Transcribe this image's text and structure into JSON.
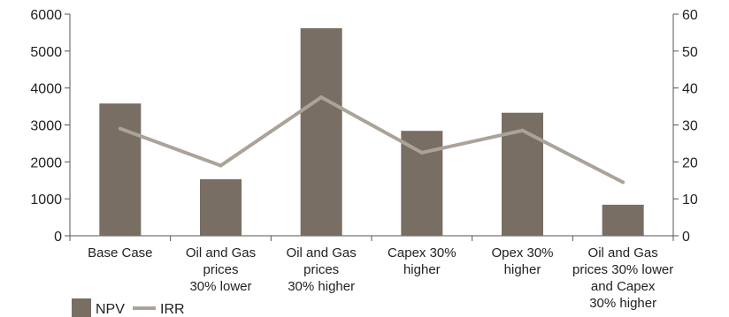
{
  "chart_data": {
    "type": "bar",
    "categories": [
      "Base Case",
      "Oil and Gas prices 30% lower",
      "Oil and Gas prices 30% higher",
      "Capex 30% higher",
      "Opex 30% higher",
      "Oil and Gas prices 30% lower and Capex 30% higher"
    ],
    "category_lines": [
      [
        "Base Case"
      ],
      [
        "Oil and Gas",
        "prices",
        "30% lower"
      ],
      [
        "Oil and Gas",
        "prices",
        "30% higher"
      ],
      [
        "Capex 30%",
        "higher"
      ],
      [
        "Opex 30%",
        "higher"
      ],
      [
        "Oil and Gas",
        "prices 30% lower",
        "and Capex",
        "30% higher"
      ]
    ],
    "series": [
      {
        "name": "NPV",
        "type": "bar",
        "axis": "left",
        "values": [
          3580,
          1530,
          5620,
          2840,
          3330,
          840
        ]
      },
      {
        "name": "IRR",
        "type": "line",
        "axis": "right",
        "values": [
          29,
          19,
          37.5,
          22.5,
          28.5,
          14.5
        ]
      }
    ],
    "y_left": {
      "min": 0,
      "max": 6000,
      "ticks": [
        "0",
        "1000",
        "2000",
        "3000",
        "4000",
        "5000",
        "6000"
      ]
    },
    "y_right": {
      "min": 0,
      "max": 60,
      "ticks": [
        "0",
        "10",
        "20",
        "30",
        "40",
        "50",
        "60"
      ]
    },
    "grid": false,
    "legend": "bottom-left",
    "colors": {
      "bar": "#786e63",
      "line": "#aba398",
      "axis": "#555555"
    }
  }
}
